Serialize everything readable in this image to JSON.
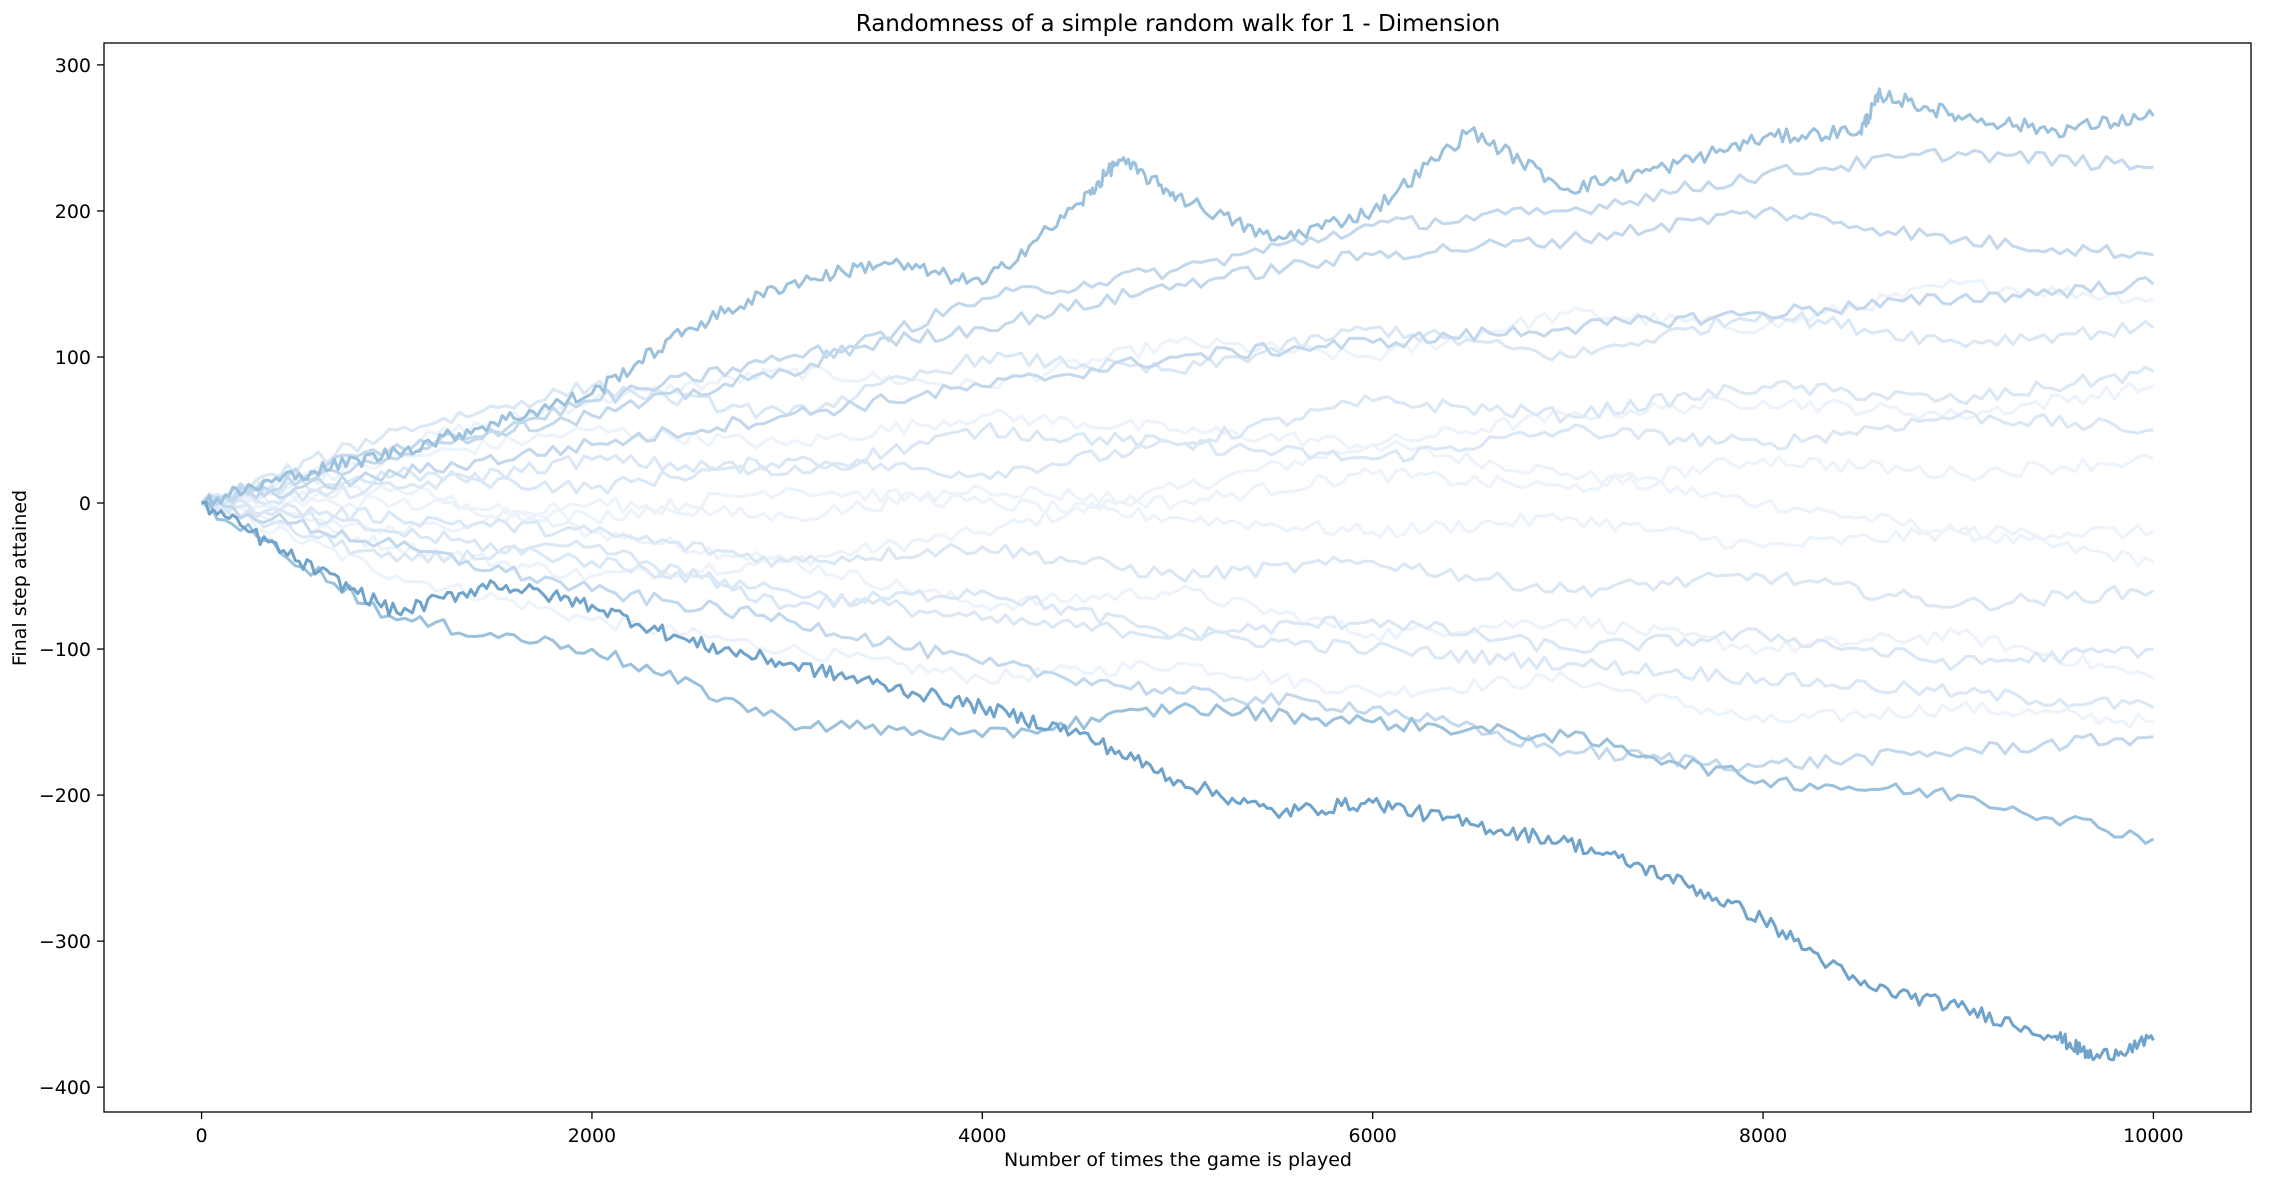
{
  "chart_data": {
    "type": "line",
    "title": "Randomness of a simple random walk for 1 - Dimension",
    "xlabel": "Number of times the game is played",
    "ylabel": "Final step attained",
    "xlim": [
      -500,
      10500
    ],
    "ylim": [
      -417,
      315
    ],
    "x_ticks": [
      0,
      2000,
      4000,
      6000,
      8000,
      10000
    ],
    "x_tick_labels": [
      "0",
      "2000",
      "4000",
      "6000",
      "8000",
      "10000"
    ],
    "y_ticks": [
      300,
      200,
      100,
      0,
      -100,
      -200,
      -300,
      -400
    ],
    "y_tick_labels": [
      "300",
      "200",
      "100",
      "0",
      "−100",
      "−200",
      "−300",
      "−400"
    ],
    "grid": false,
    "legend": "none",
    "colors": {
      "darkest": "#6fa3cc",
      "dark": "#9cc1dd",
      "medium": "#c3d8ec",
      "light": "#dae7f5",
      "lightest": "#edf3fb"
    },
    "series": [
      {
        "x": [
          0,
          500,
          1000,
          1500,
          2000,
          2500,
          3000,
          3500,
          4000,
          4500,
          5000,
          5500,
          6000,
          6500,
          7000,
          7500,
          8000,
          8500,
          9000,
          9500,
          9700,
          10000
        ],
        "y": [
          0,
          -40,
          -75,
          -55,
          -70,
          -95,
          -110,
          -125,
          -140,
          -158,
          -190,
          -212,
          -205,
          -220,
          -232,
          -255,
          -285,
          -330,
          -345,
          -365,
          -380,
          -368
        ]
      },
      {
        "x": [
          0,
          500,
          1000,
          1500,
          2000,
          2500,
          3000,
          3500,
          4000,
          4500,
          4700,
          5000,
          5500,
          6000,
          6500,
          7000,
          7500,
          8000,
          8500,
          8600,
          9000,
          9500,
          10000
        ],
        "y": [
          0,
          20,
          35,
          55,
          75,
          120,
          150,
          165,
          150,
          205,
          235,
          210,
          180,
          200,
          255,
          215,
          230,
          250,
          255,
          280,
          265,
          255,
          265
        ]
      },
      {
        "x": [
          0,
          1000,
          2000,
          3000,
          4000,
          5000,
          6000,
          7000,
          8000,
          9000,
          10000
        ],
        "y": [
          0,
          -80,
          -100,
          -150,
          -160,
          -140,
          -150,
          -160,
          -190,
          -200,
          -230
        ]
      },
      {
        "x": [
          0,
          1000,
          2000,
          3000,
          4000,
          5000,
          6000,
          7000,
          8000,
          9000,
          10000
        ],
        "y": [
          0,
          40,
          60,
          90,
          140,
          160,
          190,
          200,
          225,
          240,
          230
        ]
      },
      {
        "x": [
          0,
          1000,
          2000,
          3000,
          4000,
          5000,
          6000,
          7000,
          8000,
          9000,
          10000
        ],
        "y": [
          0,
          30,
          70,
          100,
          120,
          150,
          170,
          180,
          200,
          180,
          170
        ]
      },
      {
        "x": [
          0,
          1000,
          2000,
          3000,
          4000,
          5000,
          6000,
          7000,
          8000,
          9000,
          10000
        ],
        "y": [
          0,
          -30,
          -60,
          -80,
          -110,
          -130,
          -140,
          -170,
          -180,
          -170,
          -160
        ]
      },
      {
        "x": [
          0,
          1000,
          2000,
          3000,
          4000,
          5000,
          6000,
          7000,
          8000,
          9000,
          10000
        ],
        "y": [
          0,
          20,
          40,
          60,
          80,
          100,
          110,
          120,
          130,
          140,
          150
        ]
      },
      {
        "x": [
          0,
          1000,
          2000,
          3000,
          4000,
          5000,
          6000,
          7000,
          8000,
          9000,
          10000
        ],
        "y": [
          0,
          -20,
          -40,
          -60,
          -80,
          -90,
          -100,
          -110,
          -120,
          -130,
          -140
        ]
      },
      {
        "x": [
          0,
          1000,
          2000,
          3000,
          4000,
          5000,
          6000,
          7000,
          8000,
          9000,
          10000
        ],
        "y": [
          0,
          50,
          80,
          60,
          100,
          90,
          120,
          100,
          130,
          110,
          120
        ]
      },
      {
        "x": [
          0,
          1000,
          2000,
          3000,
          4000,
          5000,
          6000,
          7000,
          8000,
          9000,
          10000
        ],
        "y": [
          0,
          -40,
          -30,
          -70,
          -60,
          -90,
          -80,
          -100,
          -90,
          -110,
          -100
        ]
      },
      {
        "x": [
          0,
          1000,
          2000,
          3000,
          4000,
          5000,
          6000,
          7000,
          8000,
          9000,
          10000
        ],
        "y": [
          0,
          10,
          30,
          20,
          50,
          40,
          70,
          60,
          80,
          70,
          90
        ]
      },
      {
        "x": [
          0,
          1000,
          2000,
          3000,
          4000,
          5000,
          6000,
          7000,
          8000,
          9000,
          10000
        ],
        "y": [
          0,
          -10,
          -20,
          -40,
          -30,
          -50,
          -40,
          -60,
          -50,
          -70,
          -60
        ]
      },
      {
        "x": [
          0,
          1000,
          2000,
          3000,
          4000,
          5000,
          6000,
          7000,
          8000,
          9000,
          10000
        ],
        "y": [
          0,
          20,
          10,
          30,
          20,
          40,
          30,
          50,
          40,
          60,
          50
        ]
      },
      {
        "x": [
          0,
          1000,
          2000,
          3000,
          4000,
          5000,
          6000,
          7000,
          8000,
          9000,
          10000
        ],
        "y": [
          0,
          -20,
          0,
          -10,
          10,
          0,
          20,
          10,
          30,
          20,
          30
        ]
      },
      {
        "x": [
          0,
          1000,
          2000,
          3000,
          4000,
          5000,
          6000,
          7000,
          8000,
          9000,
          10000
        ],
        "y": [
          0,
          0,
          -10,
          10,
          0,
          -10,
          -20,
          -10,
          -30,
          -20,
          -20
        ]
      },
      {
        "x": [
          0,
          1000,
          2000,
          3000,
          4000,
          5000,
          6000,
          7000,
          8000,
          9000,
          10000
        ],
        "y": [
          0,
          30,
          50,
          40,
          60,
          50,
          40,
          60,
          70,
          60,
          80
        ]
      },
      {
        "x": [
          0,
          1000,
          2000,
          3000,
          4000,
          5000,
          6000,
          7000,
          8000,
          9000,
          10000
        ],
        "y": [
          0,
          -30,
          -50,
          -40,
          -70,
          -60,
          -90,
          -80,
          -100,
          -90,
          -120
        ]
      },
      {
        "x": [
          0,
          1000,
          2000,
          3000,
          4000,
          5000,
          6000,
          7000,
          8000,
          9000,
          10000
        ],
        "y": [
          0,
          40,
          70,
          90,
          80,
          110,
          100,
          130,
          120,
          150,
          140
        ]
      },
      {
        "x": [
          0,
          1000,
          2000,
          3000,
          4000,
          5000,
          6000,
          7000,
          8000,
          9000,
          10000
        ],
        "y": [
          0,
          -50,
          -80,
          -100,
          -120,
          -110,
          -130,
          -120,
          -150,
          -140,
          -150
        ]
      },
      {
        "x": [
          0,
          1000,
          2000,
          3000,
          4000,
          5000,
          6000,
          7000,
          8000,
          9000,
          10000
        ],
        "y": [
          0,
          10,
          -20,
          -40,
          -20,
          10,
          40,
          20,
          0,
          -20,
          -40
        ]
      }
    ]
  }
}
